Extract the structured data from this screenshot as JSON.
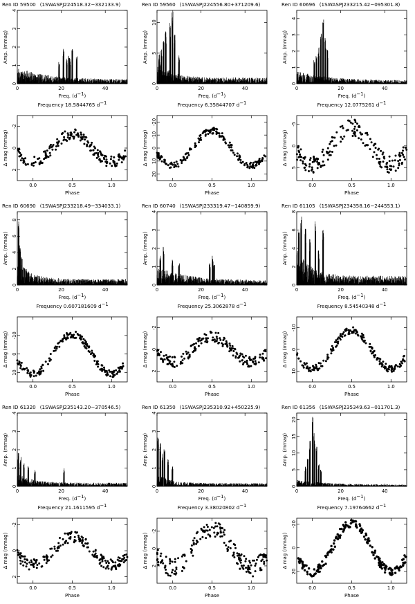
{
  "figure": {
    "panels": [
      {
        "ren_id": "Ren ID 59500",
        "swasp": "(1SWASPJ224518.32−332133.9)",
        "frequency_label": "Frequency 18.5844765 d",
        "amp_max": 4,
        "amp_ticks": [
          0,
          1,
          2,
          3,
          4
        ],
        "dmag_lim": [
          3,
          -3
        ],
        "dmag_ticks": [
          2,
          0,
          -2
        ],
        "dip": 1.2,
        "harm": 0.3,
        "noise": 0.9,
        "peaks": [
          [
            21,
            1.9
          ],
          [
            25,
            1.9
          ],
          [
            22.5,
            1.4
          ],
          [
            27,
            1.5
          ],
          [
            19,
            1.2
          ],
          [
            24,
            1.4
          ],
          [
            23.5,
            1.6
          ]
        ],
        "lowf": false,
        "seed": 11
      },
      {
        "ren_id": "Ren ID 59560",
        "swasp": "(1SWASPJ224556.80+371209.6)",
        "frequency_label": "Frequency 6.35844707 d",
        "amp_max": 12,
        "amp_ticks": [
          0,
          5,
          10
        ],
        "dmag_lim": [
          25,
          -25
        ],
        "dmag_ticks": [
          20,
          10,
          0,
          -10,
          -20
        ],
        "dip": 15,
        "harm": 0.1,
        "noise": 4,
        "peaks": [
          [
            7,
            12.5
          ],
          [
            6,
            10
          ],
          [
            4,
            9
          ],
          [
            8,
            8
          ],
          [
            3,
            7
          ],
          [
            2,
            6
          ],
          [
            1,
            5
          ],
          [
            10,
            5
          ]
        ],
        "lowf": true,
        "seed": 22
      },
      {
        "ren_id": "Ren ID 60696",
        "swasp": "(1SWASPJ233215.42−095301.8)",
        "frequency_label": "Frequency 12.0775261 d",
        "amp_max": 4.5,
        "amp_ticks": [
          0,
          1,
          2,
          3,
          4
        ],
        "dmag_lim": [
          8,
          -7
        ],
        "dmag_ticks": [
          5,
          0,
          -5
        ],
        "dip": 5,
        "harm": 0.05,
        "noise": 0.8,
        "peaks": [
          [
            12,
            4
          ],
          [
            11,
            3.2
          ],
          [
            13,
            2.8
          ],
          [
            10,
            2.3
          ],
          [
            14,
            2.1
          ],
          [
            9,
            1.8
          ],
          [
            8,
            1.5
          ]
        ],
        "lowf": false,
        "seed": 33
      },
      {
        "ren_id": "Ren ID 60690",
        "swasp": "(1SWASPJ233218.49−334033.1)",
        "frequency_label": "Frequency 0.607181609 d",
        "amp_max": 9,
        "amp_ticks": [
          0,
          2,
          4,
          6,
          8
        ],
        "dmag_lim": [
          15,
          -20
        ],
        "dmag_ticks": [
          10,
          0,
          -10
        ],
        "dip": 12,
        "harm": 0.1,
        "noise": 3,
        "peaks": [
          [
            0.6,
            7.8
          ],
          [
            1.2,
            5.5
          ],
          [
            2,
            3.5
          ],
          [
            3,
            2.5
          ],
          [
            4,
            2
          ],
          [
            5,
            1.7
          ]
        ],
        "lowf": true,
        "seed": 44
      },
      {
        "ren_id": "Ren ID 60740",
        "swasp": "(1SWASPJ233319.47−140859.9)",
        "frequency_label": "Frequency 25.3062878 d",
        "amp_max": 4,
        "amp_ticks": [
          0,
          1,
          2,
          3,
          4
        ],
        "dmag_lim": [
          3,
          -3
        ],
        "dmag_ticks": [
          2,
          0,
          -2
        ],
        "dip": 1.2,
        "harm": 0.2,
        "noise": 1.0,
        "peaks": [
          [
            3,
            2.1
          ],
          [
            1.5,
            1.6
          ],
          [
            25.3,
            1.6
          ],
          [
            24,
            1.2
          ],
          [
            26,
            1.1
          ],
          [
            7,
            1.5
          ],
          [
            10,
            1.2
          ]
        ],
        "lowf": false,
        "seed": 55
      },
      {
        "ren_id": "Ren ID 61105",
        "swasp": "(1SWASPJ234358.16−244553.1)",
        "frequency_label": "Frequency 8.54540348 d",
        "amp_max": 8,
        "amp_ticks": [
          0,
          2,
          4,
          6,
          8
        ],
        "dmag_lim": [
          15,
          -15
        ],
        "dmag_ticks": [
          10,
          0,
          -10
        ],
        "dip": 10,
        "harm": 0.1,
        "noise": 4,
        "peaks": [
          [
            8.5,
            7.5
          ],
          [
            2,
            7.5
          ],
          [
            4,
            6.2
          ],
          [
            12,
            6
          ],
          [
            1,
            6
          ],
          [
            6,
            5
          ],
          [
            10,
            4
          ]
        ],
        "lowf": true,
        "seed": 66
      },
      {
        "ren_id": "Ren ID 61320",
        "swasp": "(1SWASPJ235143.20−370546.5)",
        "frequency_label": "Frequency 21.1611595 d",
        "amp_max": 4,
        "amp_ticks": [
          0,
          1,
          2,
          3,
          4
        ],
        "dmag_lim": [
          2.5,
          -2.5
        ],
        "dmag_ticks": [
          2,
          0,
          -2
        ],
        "dip": 1.1,
        "harm": 0.2,
        "noise": 0.8,
        "peaks": [
          [
            0.5,
            1.9
          ],
          [
            1.5,
            1.6
          ],
          [
            3,
            1.3
          ],
          [
            21.2,
            1.0
          ],
          [
            5,
            1.1
          ],
          [
            8,
            0.9
          ]
        ],
        "lowf": true,
        "seed": 77
      },
      {
        "ren_id": "Ren ID 61350",
        "swasp": "(1SWASPJ235310.92+450225.9)",
        "frequency_label": "Frequency 3.38020802 d",
        "amp_max": 4,
        "amp_ticks": [
          0,
          1,
          2,
          3,
          4
        ],
        "dmag_lim": [
          4,
          -3.5
        ],
        "dmag_ticks": [
          2,
          0,
          -2
        ],
        "dip": 2.5,
        "harm": 0.1,
        "noise": 0.7,
        "peaks": [
          [
            0.5,
            2.7
          ],
          [
            1.5,
            2.5
          ],
          [
            3.4,
            2.1
          ],
          [
            2.5,
            1.8
          ],
          [
            5,
            1.5
          ],
          [
            7,
            1.2
          ]
        ],
        "lowf": true,
        "seed": 88
      },
      {
        "ren_id": "Ren ID 61356",
        "swasp": "(1SWASPJ235349.63−011701.3)",
        "frequency_label": "Frequency 7.19764662 d",
        "amp_max": 22,
        "amp_ticks": [
          0,
          5,
          10,
          15,
          20
        ],
        "dmag_lim": [
          30,
          -25
        ],
        "dmag_ticks": [
          20,
          0,
          -20
        ],
        "dip": 24,
        "harm": 0.05,
        "noise": 2,
        "peaks": [
          [
            7.2,
            21
          ],
          [
            8,
            17
          ],
          [
            6,
            14
          ],
          [
            9,
            12
          ],
          [
            5,
            9
          ],
          [
            10,
            7
          ],
          [
            4,
            6
          ],
          [
            11,
            5
          ]
        ],
        "lowf": false,
        "seed": 99
      }
    ],
    "common": {
      "freq_xlabel": "Freq. (d",
      "freq_exp": "−1",
      "freq_close": ")",
      "dinv": " d",
      "dinv_exp": "−1",
      "amp_ylabel": "Amp. (mmag)",
      "dmag_ylabel": "Δ mag (mmag)",
      "phase_xlabel": "Phase",
      "freq_ticks": [
        0,
        20,
        40
      ],
      "phase_ticks": [
        0,
        0.5,
        1
      ],
      "phase_tick_labels": [
        "0.0",
        "0.5",
        "1.0"
      ]
    }
  },
  "chart_data": [
    {
      "type": "line",
      "title": "Ren ID 59500 (1SWASPJ224518.32−332133.9)",
      "xlabel": "Freq. (d−1)",
      "ylabel": "Amp. (mmag)",
      "xlim": [
        0,
        50
      ],
      "ylim": [
        0,
        4
      ],
      "peak_frequency": 18.5844765
    },
    {
      "type": "scatter",
      "title": "Frequency 18.5844765 d−1",
      "xlabel": "Phase",
      "ylabel": "Δ mag (mmag)",
      "xlim": [
        -0.2,
        1.2
      ],
      "ylim": [
        3,
        -3
      ]
    },
    {
      "type": "line",
      "title": "Ren ID 59560 (1SWASPJ224556.80+371209.6)",
      "xlabel": "Freq. (d−1)",
      "ylabel": "Amp. (mmag)",
      "xlim": [
        0,
        50
      ],
      "ylim": [
        0,
        12
      ],
      "peak_frequency": 6.35844707
    },
    {
      "type": "scatter",
      "title": "Frequency 6.35844707 d−1",
      "xlabel": "Phase",
      "ylabel": "Δ mag (mmag)",
      "xlim": [
        -0.2,
        1.2
      ],
      "ylim": [
        25,
        -25
      ]
    },
    {
      "type": "line",
      "title": "Ren ID 60696 (1SWASPJ233215.42−095301.8)",
      "xlabel": "Freq. (d−1)",
      "ylabel": "Amp. (mmag)",
      "xlim": [
        0,
        50
      ],
      "ylim": [
        0,
        4.5
      ],
      "peak_frequency": 12.0775261
    },
    {
      "type": "scatter",
      "title": "Frequency 12.0775261 d−1",
      "xlabel": "Phase",
      "ylabel": "Δ mag (mmag)",
      "xlim": [
        -0.2,
        1.2
      ],
      "ylim": [
        8,
        -7
      ]
    },
    {
      "type": "line",
      "title": "Ren ID 60690 (1SWASPJ233218.49−334033.1)",
      "xlabel": "Freq. (d−1)",
      "ylabel": "Amp. (mmag)",
      "xlim": [
        0,
        50
      ],
      "ylim": [
        0,
        9
      ],
      "peak_frequency": 0.607181609
    },
    {
      "type": "scatter",
      "title": "Frequency 0.607181609 d−1",
      "xlabel": "Phase",
      "ylabel": "Δ mag (mmag)",
      "xlim": [
        -0.2,
        1.2
      ],
      "ylim": [
        15,
        -20
      ]
    },
    {
      "type": "line",
      "title": "Ren ID 60740 (1SWASPJ233319.47−140859.9)",
      "xlabel": "Freq. (d−1)",
      "ylabel": "Amp. (mmag)",
      "xlim": [
        0,
        50
      ],
      "ylim": [
        0,
        4
      ],
      "peak_frequency": 25.3062878
    },
    {
      "type": "scatter",
      "title": "Frequency 25.3062878 d−1",
      "xlabel": "Phase",
      "ylabel": "Δ mag (mmag)",
      "xlim": [
        -0.2,
        1.2
      ],
      "ylim": [
        3,
        -3
      ]
    },
    {
      "type": "line",
      "title": "Ren ID 61105 (1SWASPJ234358.16−244553.1)",
      "xlabel": "Freq. (d−1)",
      "ylabel": "Amp. (mmag)",
      "xlim": [
        0,
        50
      ],
      "ylim": [
        0,
        8
      ],
      "peak_frequency": 8.54540348
    },
    {
      "type": "scatter",
      "title": "Frequency 8.54540348 d−1",
      "xlabel": "Phase",
      "ylabel": "Δ mag (mmag)",
      "xlim": [
        -0.2,
        1.2
      ],
      "ylim": [
        15,
        -15
      ]
    },
    {
      "type": "line",
      "title": "Ren ID 61320 (1SWASPJ235143.20−370546.5)",
      "xlabel": "Freq. (d−1)",
      "ylabel": "Amp. (mmag)",
      "xlim": [
        0,
        50
      ],
      "ylim": [
        0,
        4
      ],
      "peak_frequency": 21.1611595
    },
    {
      "type": "scatter",
      "title": "Frequency 21.1611595 d−1",
      "xlabel": "Phase",
      "ylabel": "Δ mag (mmag)",
      "xlim": [
        -0.2,
        1.2
      ],
      "ylim": [
        2.5,
        -2.5
      ]
    },
    {
      "type": "line",
      "title": "Ren ID 61350 (1SWASPJ235310.92+450225.9)",
      "xlabel": "Freq. (d−1)",
      "ylabel": "Amp. (mmag)",
      "xlim": [
        0,
        50
      ],
      "ylim": [
        0,
        4
      ],
      "peak_frequency": 3.38020802
    },
    {
      "type": "scatter",
      "title": "Frequency 3.38020802 d−1",
      "xlabel": "Phase",
      "ylabel": "Δ mag (mmag)",
      "xlim": [
        -0.2,
        1.2
      ],
      "ylim": [
        4,
        -3.5
      ]
    },
    {
      "type": "line",
      "title": "Ren ID 61356 (1SWASPJ235349.63−011701.3)",
      "xlabel": "Freq. (d−1)",
      "ylabel": "Amp. (mmag)",
      "xlim": [
        0,
        50
      ],
      "ylim": [
        0,
        22
      ],
      "peak_frequency": 7.19764662
    },
    {
      "type": "scatter",
      "title": "Frequency 7.19764662 d−1",
      "xlabel": "Phase",
      "ylabel": "Δ mag (mmag)",
      "xlim": [
        -0.2,
        1.2
      ],
      "ylim": [
        30,
        -25
      ]
    }
  ]
}
